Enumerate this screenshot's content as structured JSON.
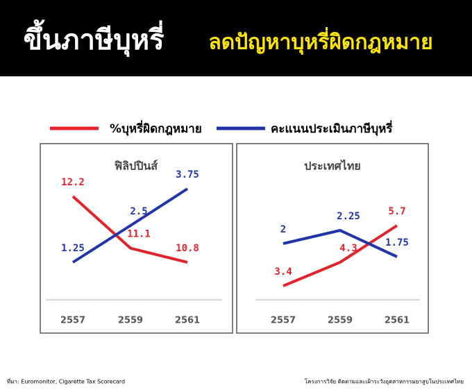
{
  "header": {
    "title": "ขึ้นภาษีบุหรี่",
    "subtitle": "ลดปัญหาบุหรี่ผิดกฎหมาย"
  },
  "chart_data": [
    {
      "type": "line",
      "title": "ฟิลิปปินส์",
      "categories": [
        "2557",
        "2559",
        "2561"
      ],
      "series": [
        {
          "name": "%บุหรี่ผิดกฎหมาย",
          "color": "#e3222b",
          "values": [
            12.2,
            11.1,
            10.8
          ]
        },
        {
          "name": "คะแนนประเมินภาษีบุหรี่",
          "color": "#2135a8",
          "values": [
            1.25,
            2.5,
            3.75
          ]
        }
      ]
    },
    {
      "type": "line",
      "title": "ประเทศไทย",
      "categories": [
        "2557",
        "2559",
        "2561"
      ],
      "series": [
        {
          "color": "#e3222b",
          "values": [
            3.4,
            4.3,
            5.7
          ]
        },
        {
          "color": "#2135a8",
          "values": [
            2,
            2.25,
            1.75
          ]
        }
      ]
    }
  ],
  "footer": {
    "source": "ที่มา: Euromonitor, Cigarette Tax Scorecard",
    "credit": "โครงการวิจัย ติดตามและเฝ้าระวังอุตสาหกรรมยาสูบในประเทศไทย"
  }
}
